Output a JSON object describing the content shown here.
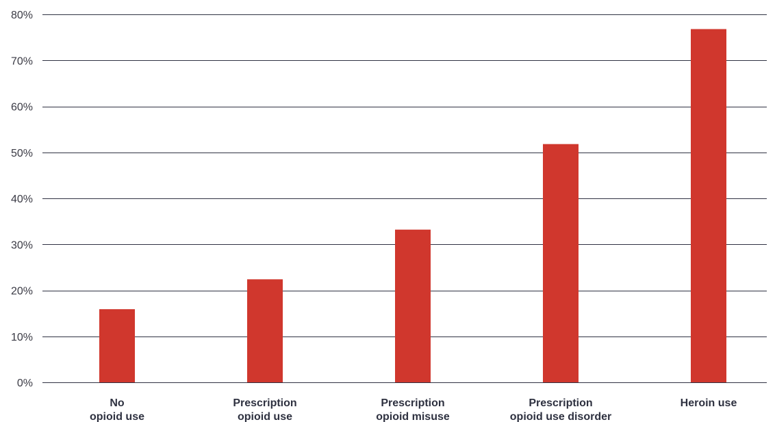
{
  "chart_data": {
    "type": "bar",
    "title": "",
    "xlabel": "",
    "ylabel": "",
    "ylim": [
      0,
      80
    ],
    "yticks": [
      0,
      10,
      20,
      30,
      40,
      50,
      60,
      70,
      80
    ],
    "ytick_labels": [
      "0%",
      "10%",
      "20%",
      "30%",
      "40%",
      "50%",
      "60%",
      "70%",
      "80%"
    ],
    "grid": true,
    "categories": [
      [
        "No",
        "opioid use"
      ],
      [
        "Prescription",
        "opioid use"
      ],
      [
        "Prescription",
        "opioid misuse"
      ],
      [
        "Prescription",
        "opioid use disorder"
      ],
      [
        "Heroin use"
      ]
    ],
    "values": [
      15.9,
      22.4,
      33.2,
      51.8,
      76.8
    ],
    "bar_color": "#d0372d"
  }
}
